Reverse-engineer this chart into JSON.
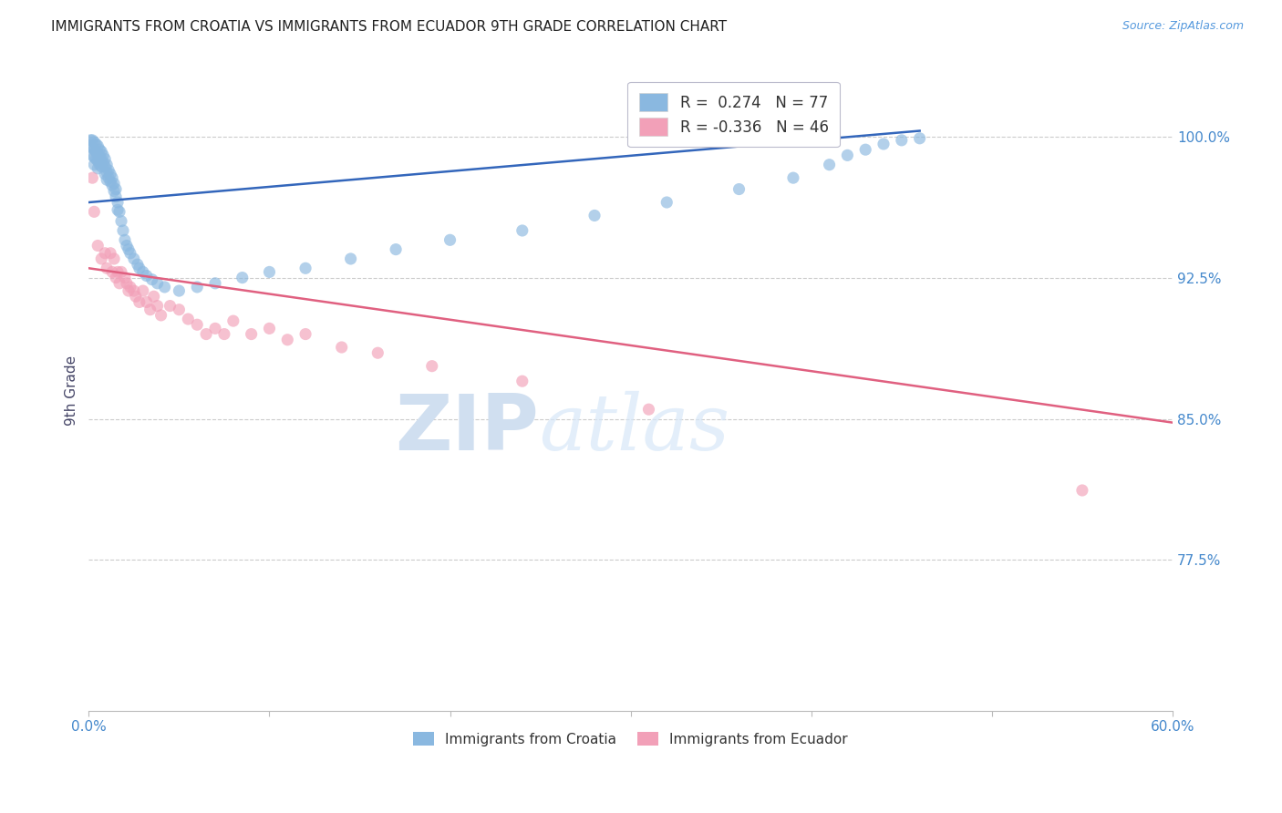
{
  "title": "IMMIGRANTS FROM CROATIA VS IMMIGRANTS FROM ECUADOR 9TH GRADE CORRELATION CHART",
  "source_text": "Source: ZipAtlas.com",
  "ylabel": "9th Grade",
  "ytick_labels": [
    "100.0%",
    "92.5%",
    "85.0%",
    "77.5%"
  ],
  "ytick_values": [
    1.0,
    0.925,
    0.85,
    0.775
  ],
  "xmin": 0.0,
  "xmax": 0.6,
  "ymin": 0.695,
  "ymax": 1.035,
  "croatia_R": 0.274,
  "croatia_N": 77,
  "ecuador_R": -0.336,
  "ecuador_N": 46,
  "blue_color": "#8ab8e0",
  "pink_color": "#f2a0b8",
  "blue_line_color": "#3366bb",
  "pink_line_color": "#e06080",
  "watermark_zip": "ZIP",
  "watermark_atlas": "atlas",
  "watermark_color": "#d0dff0",
  "title_color": "#222222",
  "ylabel_color": "#444466",
  "ytick_color": "#4488CC",
  "grid_color": "#CCCCCC",
  "croatia_scatter_x": [
    0.001,
    0.001,
    0.002,
    0.002,
    0.002,
    0.003,
    0.003,
    0.003,
    0.003,
    0.004,
    0.004,
    0.004,
    0.005,
    0.005,
    0.005,
    0.005,
    0.006,
    0.006,
    0.006,
    0.007,
    0.007,
    0.007,
    0.008,
    0.008,
    0.009,
    0.009,
    0.009,
    0.01,
    0.01,
    0.01,
    0.011,
    0.011,
    0.012,
    0.012,
    0.013,
    0.013,
    0.014,
    0.014,
    0.015,
    0.015,
    0.016,
    0.016,
    0.017,
    0.018,
    0.019,
    0.02,
    0.021,
    0.022,
    0.023,
    0.025,
    0.027,
    0.028,
    0.03,
    0.032,
    0.035,
    0.038,
    0.042,
    0.05,
    0.06,
    0.07,
    0.085,
    0.1,
    0.12,
    0.145,
    0.17,
    0.2,
    0.24,
    0.28,
    0.32,
    0.36,
    0.39,
    0.41,
    0.42,
    0.43,
    0.44,
    0.45,
    0.46
  ],
  "croatia_scatter_y": [
    0.998,
    0.995,
    0.998,
    0.994,
    0.99,
    0.997,
    0.993,
    0.989,
    0.985,
    0.996,
    0.992,
    0.988,
    0.995,
    0.991,
    0.987,
    0.983,
    0.993,
    0.989,
    0.985,
    0.992,
    0.988,
    0.984,
    0.99,
    0.986,
    0.988,
    0.984,
    0.98,
    0.985,
    0.981,
    0.977,
    0.982,
    0.978,
    0.98,
    0.976,
    0.978,
    0.974,
    0.975,
    0.971,
    0.972,
    0.968,
    0.965,
    0.961,
    0.96,
    0.955,
    0.95,
    0.945,
    0.942,
    0.94,
    0.938,
    0.935,
    0.932,
    0.93,
    0.928,
    0.926,
    0.924,
    0.922,
    0.92,
    0.918,
    0.92,
    0.922,
    0.925,
    0.928,
    0.93,
    0.935,
    0.94,
    0.945,
    0.95,
    0.958,
    0.965,
    0.972,
    0.978,
    0.985,
    0.99,
    0.993,
    0.996,
    0.998,
    0.999
  ],
  "ecuador_scatter_x": [
    0.002,
    0.003,
    0.005,
    0.007,
    0.009,
    0.01,
    0.012,
    0.013,
    0.014,
    0.015,
    0.016,
    0.017,
    0.018,
    0.02,
    0.021,
    0.022,
    0.023,
    0.025,
    0.026,
    0.028,
    0.03,
    0.032,
    0.034,
    0.036,
    0.038,
    0.04,
    0.045,
    0.05,
    0.055,
    0.06,
    0.065,
    0.07,
    0.075,
    0.08,
    0.09,
    0.1,
    0.11,
    0.12,
    0.14,
    0.16,
    0.19,
    0.24,
    0.31,
    0.55
  ],
  "ecuador_scatter_y": [
    0.978,
    0.96,
    0.942,
    0.935,
    0.938,
    0.93,
    0.938,
    0.928,
    0.935,
    0.925,
    0.928,
    0.922,
    0.928,
    0.925,
    0.922,
    0.918,
    0.92,
    0.918,
    0.915,
    0.912,
    0.918,
    0.912,
    0.908,
    0.915,
    0.91,
    0.905,
    0.91,
    0.908,
    0.903,
    0.9,
    0.895,
    0.898,
    0.895,
    0.902,
    0.895,
    0.898,
    0.892,
    0.895,
    0.888,
    0.885,
    0.878,
    0.87,
    0.855,
    0.812
  ],
  "croatia_trend_x": [
    0.0,
    0.46
  ],
  "croatia_trend_y": [
    0.965,
    1.003
  ],
  "ecuador_trend_x": [
    0.0,
    0.6
  ],
  "ecuador_trend_y": [
    0.93,
    0.848
  ]
}
